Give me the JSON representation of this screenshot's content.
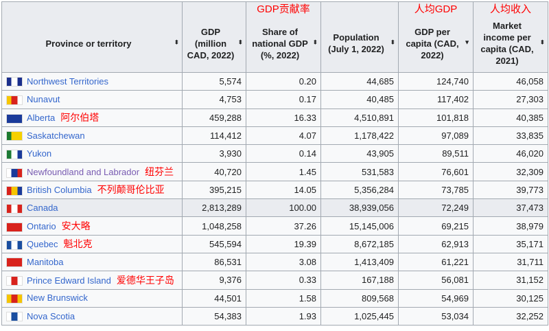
{
  "headers": [
    {
      "label": "Province or territory",
      "sort": "both"
    },
    {
      "label": "GDP (million CAD, 2022)",
      "sort": "both"
    },
    {
      "label": "Share of national GDP (%, 2022)",
      "sort": "both"
    },
    {
      "label": "Population (July 1, 2022)",
      "sort": "both"
    },
    {
      "label": "GDP per capita (CAD, 2022)",
      "sort": "descending"
    },
    {
      "label": "Market income per capita (CAD, 2021)",
      "sort": "both"
    }
  ],
  "rows": [
    {
      "name": "Northwest Territories",
      "gdp": "5,574",
      "share": "0.20",
      "pop": "44,685",
      "gdppc": "124,740",
      "income": "46,058",
      "flag": [
        "#1b2f8c",
        "#fff",
        "#1b2f8c"
      ]
    },
    {
      "name": "Nunavut",
      "gdp": "4,753",
      "share": "0.17",
      "pop": "40,485",
      "gdppc": "117,402",
      "income": "27,303",
      "flag": [
        "#f7c600",
        "#d8221c",
        "#fff"
      ]
    },
    {
      "name": "Alberta",
      "gdp": "459,288",
      "share": "16.33",
      "pop": "4,510,891",
      "gdppc": "101,818",
      "income": "40,385",
      "flag": [
        "#1a3a9a",
        "#1a3a9a",
        "#1a3a9a"
      ]
    },
    {
      "name": "Saskatchewan",
      "gdp": "114,412",
      "share": "4.07",
      "pop": "1,178,422",
      "gdppc": "97,089",
      "income": "33,835",
      "flag": [
        "#1c7a2e",
        "#f5d000",
        "#f5d000"
      ]
    },
    {
      "name": "Yukon",
      "gdp": "3,930",
      "share": "0.14",
      "pop": "43,905",
      "gdppc": "89,511",
      "income": "46,020",
      "flag": [
        "#1d7a35",
        "#fff",
        "#1a3a9a"
      ]
    },
    {
      "name": "Newfoundland and Labrador",
      "gdp": "40,720",
      "share": "1.45",
      "pop": "531,583",
      "gdppc": "76,601",
      "income": "32,309",
      "flag": [
        "#fff",
        "#1a3a9a",
        "#d8221c"
      ],
      "visited": true
    },
    {
      "name": "British Columbia",
      "gdp": "395,215",
      "share": "14.05",
      "pop": "5,356,284",
      "gdppc": "73,785",
      "income": "39,773",
      "flag": [
        "#d8221c",
        "#f5c400",
        "#1a3a9a"
      ]
    },
    {
      "name": "Canada",
      "gdp": "2,813,289",
      "share": "100.00",
      "pop": "38,939,056",
      "gdppc": "72,249",
      "income": "37,473",
      "flag": [
        "#d8221c",
        "#fff",
        "#d8221c"
      ],
      "highlight": true
    },
    {
      "name": "Ontario",
      "gdp": "1,048,258",
      "share": "37.26",
      "pop": "15,145,006",
      "gdppc": "69,215",
      "income": "38,979",
      "flag": [
        "#d8221c",
        "#d8221c",
        "#d8221c"
      ]
    },
    {
      "name": "Quebec",
      "gdp": "545,594",
      "share": "19.39",
      "pop": "8,672,185",
      "gdppc": "62,913",
      "income": "35,171",
      "flag": [
        "#1a4ea0",
        "#fff",
        "#1a4ea0"
      ]
    },
    {
      "name": "Manitoba",
      "gdp": "86,531",
      "share": "3.08",
      "pop": "1,413,409",
      "gdppc": "61,221",
      "income": "31,711",
      "flag": [
        "#d8221c",
        "#d8221c",
        "#d8221c"
      ]
    },
    {
      "name": "Prince Edward Island",
      "gdp": "9,376",
      "share": "0.33",
      "pop": "167,188",
      "gdppc": "56,081",
      "income": "31,152",
      "flag": [
        "#fff",
        "#d8221c",
        "#fff"
      ]
    },
    {
      "name": "New Brunswick",
      "gdp": "44,501",
      "share": "1.58",
      "pop": "809,568",
      "gdppc": "54,969",
      "income": "30,125",
      "flag": [
        "#f5c400",
        "#d8221c",
        "#f5c400"
      ]
    },
    {
      "name": "Nova Scotia",
      "gdp": "54,383",
      "share": "1.93",
      "pop": "1,025,445",
      "gdppc": "53,034",
      "income": "32,252",
      "flag": [
        "#fff",
        "#1a4ea0",
        "#fff"
      ]
    }
  ],
  "annotations": {
    "share": "GDP贡献率",
    "gdppc": "人均GDP",
    "income": "人均收入",
    "alberta": "阿尔伯塔",
    "newfoundland": "纽芬兰",
    "bc": "不列颠哥伦比亚",
    "ontario": "安大略",
    "quebec": "魁北克",
    "pei": "爱德华王子岛"
  }
}
